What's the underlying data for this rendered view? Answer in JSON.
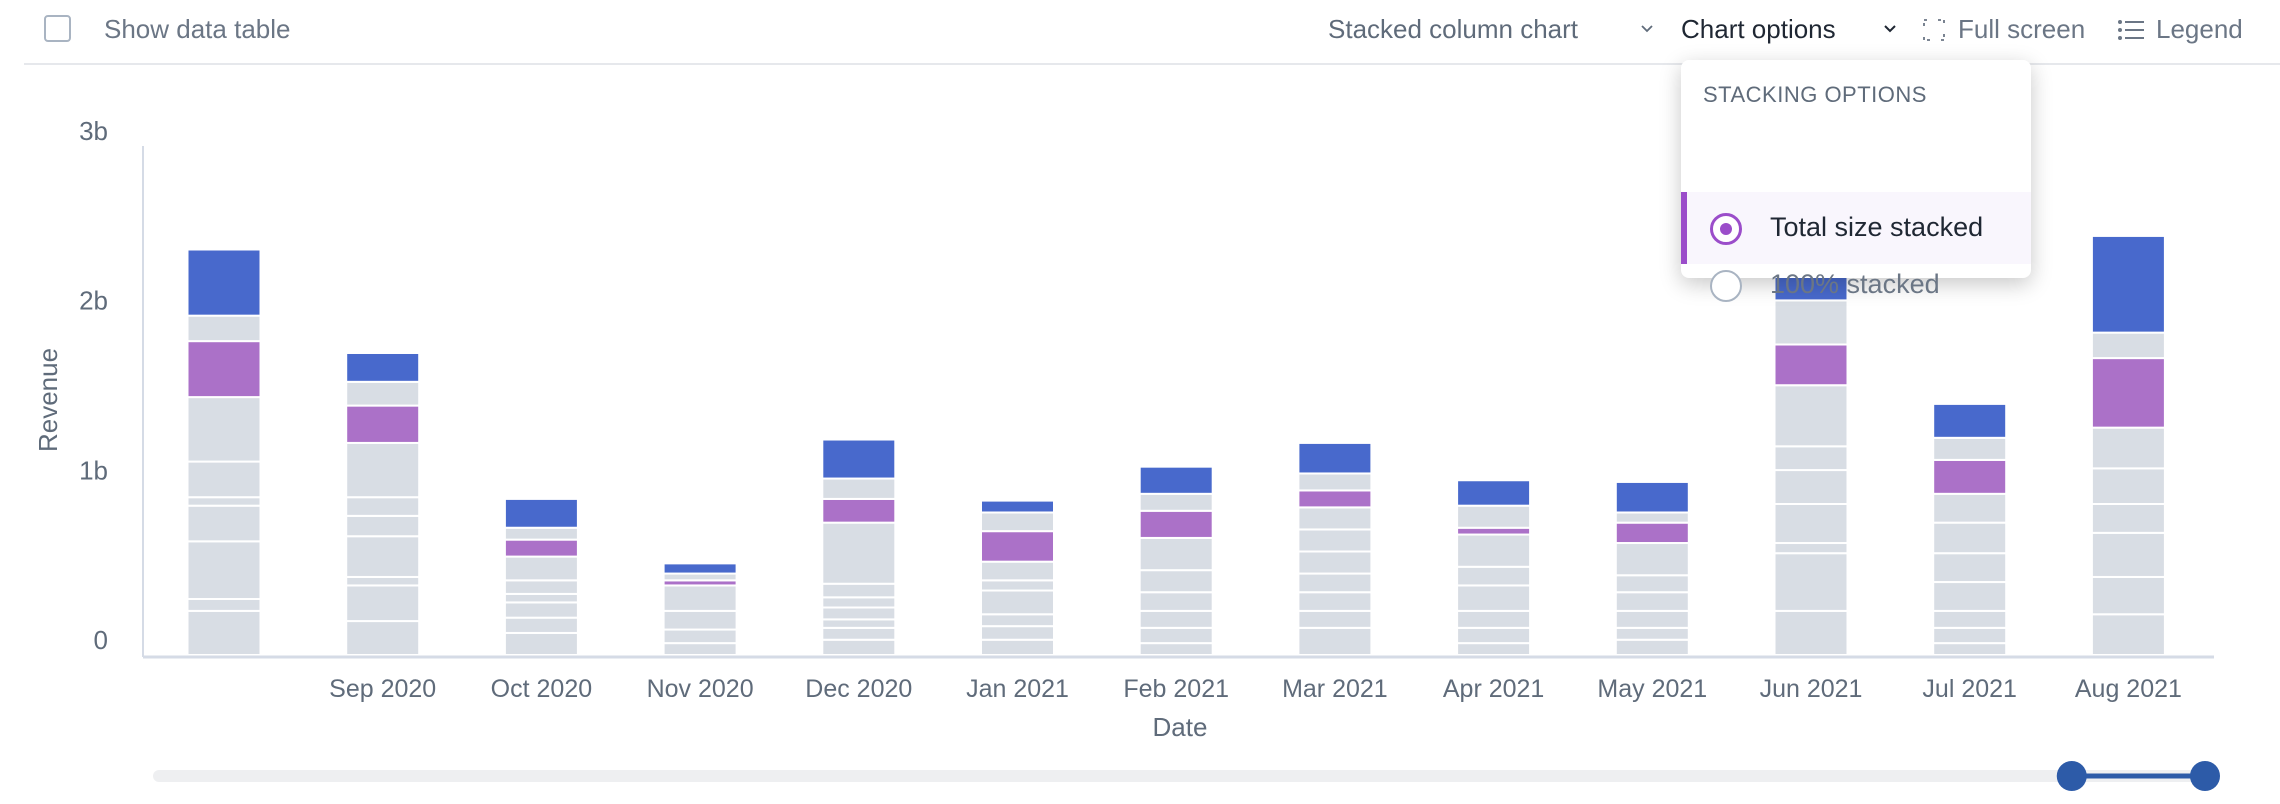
{
  "toolbar": {
    "show_data_table_label": "Show data table",
    "show_data_table_checked": false,
    "chart_type_label": "Stacked column chart",
    "chart_options_label": "Chart options",
    "full_screen_label": "Full screen",
    "legend_label": "Legend"
  },
  "dropdown": {
    "header": "STACKING OPTIONS",
    "options": [
      {
        "label": "Total size stacked",
        "selected": true
      },
      {
        "label": "100% stacked",
        "selected": false
      }
    ]
  },
  "colors": {
    "accent": "#9b4dca",
    "blue": "#4869cc",
    "purple": "#ab71c8",
    "grey": "#d8dde4",
    "slider": "#2d5ba8"
  },
  "chart_data": {
    "type": "bar",
    "stacked": true,
    "xlabel": "Date",
    "ylabel": "Revenue",
    "ylim": [
      0,
      3
    ],
    "yticks": [
      {
        "value": 0,
        "label": "0"
      },
      {
        "value": 1,
        "label": "1b"
      },
      {
        "value": 2,
        "label": "2b"
      },
      {
        "value": 3,
        "label": "3b"
      }
    ],
    "grid": false,
    "categories": [
      "",
      "Sep 2020",
      "Oct 2020",
      "Nov 2020",
      "Dec 2020",
      "Jan 2021",
      "Feb 2021",
      "Mar 2021",
      "Apr 2021",
      "May 2021",
      "Jun 2021",
      "Jul 2021",
      "Aug 2021"
    ],
    "bars": [
      {
        "grey": [
          0.26,
          0.07,
          0.34,
          0.21,
          0.05,
          0.21,
          0.38
        ],
        "purple": 0.33,
        "grey_top": 0.15,
        "blue": 0.39
      },
      {
        "grey": [
          0.2,
          0.21,
          0.05,
          0.24,
          0.12,
          0.11,
          0.32
        ],
        "purple": 0.22,
        "grey_top": 0.14,
        "blue": 0.17
      },
      {
        "grey": [
          0.13,
          0.09,
          0.09,
          0.05,
          0.08,
          0.14
        ],
        "purple": 0.1,
        "grey_top": 0.07,
        "blue": 0.17
      },
      {
        "grey": [
          0.07,
          0.08,
          0.11,
          0.15
        ],
        "purple": 0.03,
        "grey_top": 0.04,
        "blue": 0.06
      },
      {
        "grey": [
          0.09,
          0.07,
          0.05,
          0.07,
          0.06,
          0.08,
          0.36
        ],
        "purple": 0.14,
        "grey_top": 0.12,
        "blue": 0.23
      },
      {
        "grey": [
          0.09,
          0.08,
          0.07,
          0.14,
          0.06,
          0.11
        ],
        "purple": 0.18,
        "grey_top": 0.11,
        "blue": 0.07
      },
      {
        "grey": [
          0.07,
          0.09,
          0.1,
          0.11,
          0.13,
          0.19
        ],
        "purple": 0.16,
        "grey_top": 0.1,
        "blue": 0.16
      },
      {
        "grey": [
          0.16,
          0.1,
          0.11,
          0.11,
          0.13,
          0.13,
          0.13
        ],
        "purple": 0.1,
        "grey_top": 0.1,
        "blue": 0.18
      },
      {
        "grey": [
          0.07,
          0.09,
          0.1,
          0.15,
          0.11,
          0.19
        ],
        "purple": 0.04,
        "grey_top": 0.13,
        "blue": 0.15
      },
      {
        "grey": [
          0.09,
          0.07,
          0.1,
          0.11,
          0.1,
          0.19
        ],
        "purple": 0.12,
        "grey_top": 0.06,
        "blue": 0.18
      },
      {
        "grey": [
          0.26,
          0.34,
          0.06,
          0.23,
          0.2,
          0.14,
          0.36
        ],
        "purple": 0.24,
        "grey_top": 0.26,
        "blue": 0.26
      },
      {
        "grey": [
          0.07,
          0.09,
          0.1,
          0.17,
          0.17,
          0.18,
          0.17
        ],
        "purple": 0.2,
        "grey_top": 0.13,
        "blue": 0.2
      },
      {
        "grey": [
          0.24,
          0.22,
          0.26,
          0.17,
          0.21,
          0.24
        ],
        "purple": 0.41,
        "grey_top": 0.15,
        "blue": 0.57
      }
    ],
    "range_slider": {
      "start_fraction": 0.94,
      "end_fraction": 1.0
    }
  }
}
